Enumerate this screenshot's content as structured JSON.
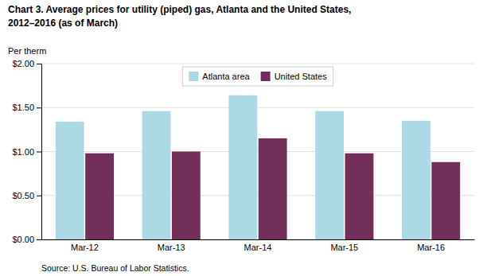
{
  "chart_data": {
    "type": "bar",
    "title": "Chart 3.  Average prices for utility (piped) gas, Atlanta and the United States,",
    "subtitle": "2012–2016  (as of March)",
    "ylabel": "Per therm",
    "source": "Source: U.S. Bureau of Labor Statistics.",
    "categories": [
      "Mar-12",
      "Mar-13",
      "Mar-14",
      "Mar-15",
      "Mar-16"
    ],
    "series": [
      {
        "name": "Atlanta area",
        "color": "#ADD8E6",
        "values": [
          1.34,
          1.46,
          1.64,
          1.46,
          1.35
        ]
      },
      {
        "name": "United States",
        "color": "#722F5A",
        "values": [
          0.98,
          1.0,
          1.15,
          0.98,
          0.88
        ]
      }
    ],
    "ylim": [
      0.0,
      2.0
    ],
    "yticks": [
      {
        "value": 0.0,
        "label": "$0.00"
      },
      {
        "value": 0.5,
        "label": "$0.50"
      },
      {
        "value": 1.0,
        "label": "$1.00"
      },
      {
        "value": 1.5,
        "label": "$1.50"
      },
      {
        "value": 2.0,
        "label": "$2.00"
      }
    ],
    "grid": true,
    "legend": "top"
  }
}
